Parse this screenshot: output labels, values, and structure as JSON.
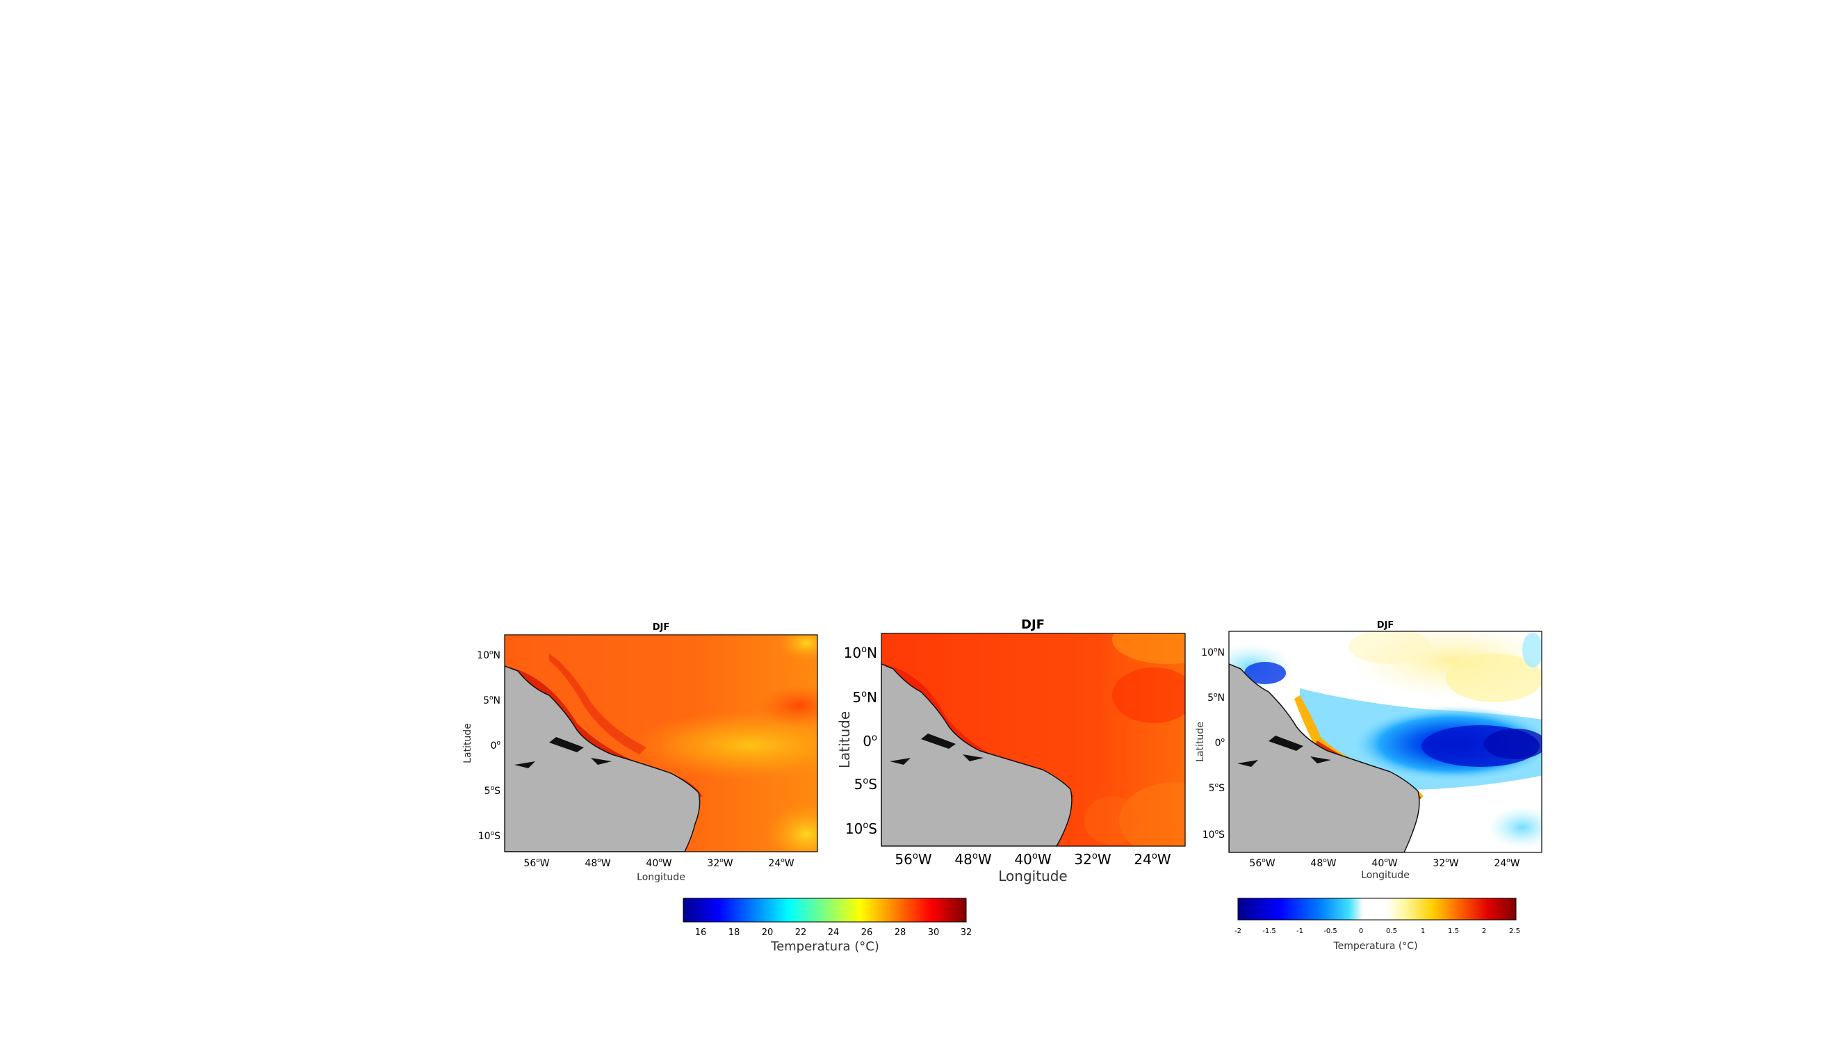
{
  "figure": {
    "panels": [
      {
        "id": "a",
        "title": "DJF",
        "xlabel": "Longitude",
        "ylabel": "Latitude",
        "lon_ticks": [
          "56",
          "48",
          "40",
          "32",
          "24"
        ],
        "lat_ticks": [
          "10",
          "5",
          "0",
          "5",
          "10"
        ],
        "lat_hemi": [
          "N",
          "N",
          "",
          "S",
          "S"
        ],
        "field": "sst_model_a",
        "colorbar": "abs"
      },
      {
        "id": "b",
        "title": "DJF",
        "xlabel": "Longitude",
        "ylabel": "Latitude",
        "lon_ticks": [
          "56",
          "48",
          "40",
          "32",
          "24"
        ],
        "lat_ticks": [
          "10",
          "5",
          "0",
          "5",
          "10"
        ],
        "lat_hemi": [
          "N",
          "N",
          "",
          "S",
          "S"
        ],
        "field": "sst_model_b",
        "colorbar": "abs"
      },
      {
        "id": "c",
        "title": "DJF",
        "xlabel": "Longitude",
        "ylabel": "Latitude",
        "lon_ticks": [
          "56",
          "48",
          "40",
          "32",
          "24"
        ],
        "lat_ticks": [
          "10",
          "5",
          "0",
          "5",
          "10"
        ],
        "lat_hemi": [
          "N",
          "N",
          "",
          "S",
          "S"
        ],
        "field": "sst_difference",
        "colorbar": "diff"
      }
    ],
    "colorbars": {
      "abs": {
        "label": "Temperatura (°C)",
        "ticks": [
          "16",
          "18",
          "20",
          "22",
          "24",
          "26",
          "28",
          "30",
          "32"
        ],
        "range": [
          14.3,
          32
        ],
        "colormap": "jet"
      },
      "diff": {
        "label": "Temperatura (°C)",
        "ticks": [
          "-2",
          "-1.5",
          "-1",
          "-0.5",
          "0",
          "0.5",
          "1",
          "1.5",
          "2",
          "2.5"
        ],
        "range": [
          -2,
          2.6
        ],
        "colormap": "diverging-jet"
      }
    },
    "land_color": "#b3b3b3",
    "ocean_abs_colors": {
      "open_ocean": "#ff5a0a",
      "coastal_warm": "#dd1c00",
      "equatorial_cool": "#ffa80c",
      "edge_cool": "#ffc715"
    },
    "ocean_diff_colors": {
      "neutral": "#ffffff",
      "cold_core": "#0010d2",
      "cold": "#0083f5",
      "cool": "#7ee0ff",
      "warm": "#fff3a8",
      "coastal_warm": "#ffb000",
      "coastal_hot": "#e02000"
    }
  }
}
